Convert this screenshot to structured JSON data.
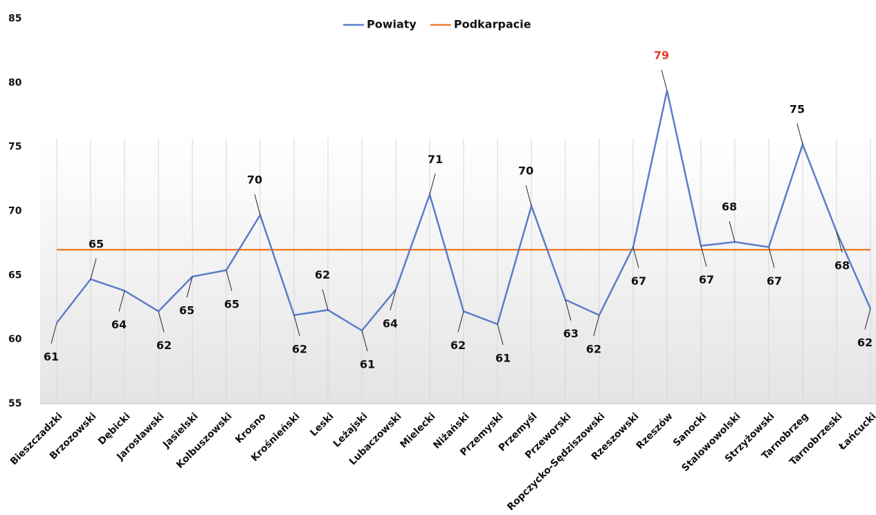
{
  "chart_data": {
    "type": "line",
    "categories": [
      "Bieszczadzki",
      "Brzozowski",
      "Dębicki",
      "Jarosławski",
      "Jasielski",
      "Kolbuszowski",
      "Krosno",
      "Krośnieński",
      "Leski",
      "Leżajski",
      "Lubaczowski",
      "Mielecki",
      "Niżański",
      "Przemyski",
      "Przemyśl",
      "Przeworski",
      "Ropczycko-Sędziszowski",
      "Rzeszowski",
      "Rzeszów",
      "Sanocki",
      "Stalowowolski",
      "Strzyżowski",
      "Tarnobrzeg",
      "Tarnobrzeski",
      "Łańcucki"
    ],
    "series": [
      {
        "name": "Powiaty",
        "color": "#5b7bc8",
        "values": [
          61.3,
          64.7,
          63.8,
          62.2,
          64.9,
          65.4,
          69.7,
          61.9,
          62.3,
          60.7,
          63.9,
          71.3,
          62.2,
          61.2,
          70.4,
          63.1,
          61.9,
          67.2,
          79.4,
          67.3,
          67.6,
          67.2,
          75.2,
          68.4,
          62.4
        ],
        "value_labels": [
          "61",
          "65",
          "64",
          "62",
          "65",
          "65",
          "70",
          "62",
          "62",
          "61",
          "64",
          "71",
          "62",
          "61",
          "70",
          "63",
          "62",
          "67",
          "79",
          "67",
          "68",
          "67",
          "75",
          "68",
          "62"
        ],
        "value_label_colors": [
          "#111",
          "#111",
          "#111",
          "#111",
          "#111",
          "#111",
          "#111",
          "#111",
          "#111",
          "#111",
          "#111",
          "#111",
          "#111",
          "#111",
          "#111",
          "#111",
          "#111",
          "#111",
          "#e03c31",
          "#111",
          "#111",
          "#111",
          "#111",
          "#111",
          "#111"
        ]
      },
      {
        "name": "Podkarpacie",
        "color": "#ed7d31",
        "values": [
          67,
          67,
          67,
          67,
          67,
          67,
          67,
          67,
          67,
          67,
          67,
          67,
          67,
          67,
          67,
          67,
          67,
          67,
          67,
          67,
          67,
          67,
          67,
          67,
          67
        ]
      }
    ],
    "ylim": [
      55,
      85
    ],
    "yticks": [
      55,
      60,
      65,
      70,
      75,
      80,
      85
    ],
    "grid": true,
    "legend": "top"
  }
}
